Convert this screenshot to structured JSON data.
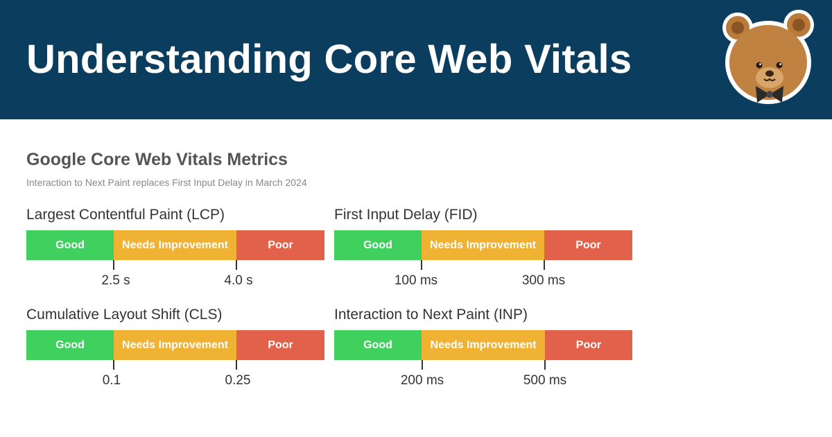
{
  "header": {
    "title": "Understanding Core Web Vitals",
    "mascot_icon": "bear-icon"
  },
  "section": {
    "title": "Google Core Web Vitals Metrics",
    "subtitle": "Interaction to Next Paint replaces First Input Delay in March 2024"
  },
  "colors": {
    "header_bg": "#0b3d5e",
    "good": "#3fd05d",
    "needs_improvement": "#efb233",
    "poor": "#e2614b"
  },
  "metrics": [
    {
      "label": "Largest Contentful Paint (LCP)",
      "good": "Good",
      "needs_improvement": "Needs Improvement",
      "poor": "Poor",
      "threshold_1": "2.5 s",
      "threshold_2": "4.0 s"
    },
    {
      "label": "First Input Delay (FID)",
      "good": "Good",
      "needs_improvement": "Needs Improvement",
      "poor": "Poor",
      "threshold_1": "100 ms",
      "threshold_2": "300 ms"
    },
    {
      "label": "Cumulative Layout Shift (CLS)",
      "good": "Good",
      "needs_improvement": "Needs Improvement",
      "poor": "Poor",
      "threshold_1": "0.1",
      "threshold_2": "0.25"
    },
    {
      "label": "Interaction to Next Paint (INP)",
      "good": "Good",
      "needs_improvement": "Needs Improvement",
      "poor": "Poor",
      "threshold_1": "200 ms",
      "threshold_2": "500 ms"
    }
  ]
}
